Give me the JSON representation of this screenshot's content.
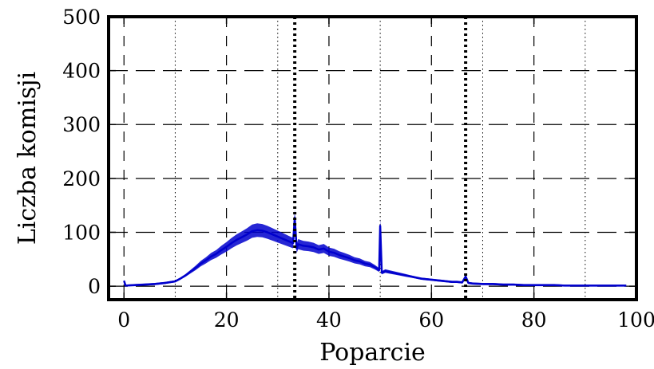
{
  "chart_data": {
    "type": "line",
    "xlabel": "Poparcie",
    "ylabel": "Liczba komisji",
    "xlim": [
      -3,
      100
    ],
    "ylim": [
      -25,
      500
    ],
    "x_ticks": [
      0,
      20,
      40,
      60,
      80,
      100
    ],
    "y_ticks": [
      0,
      100,
      200,
      300,
      400,
      500
    ],
    "x_tick_labels": [
      "0",
      "20",
      "40",
      "60",
      "80",
      "100"
    ],
    "y_tick_labels": [
      "0",
      "100",
      "200",
      "300",
      "400",
      "500"
    ],
    "grid": true,
    "grid_major_x": [
      0,
      20,
      40,
      60,
      80,
      100
    ],
    "grid_minor_x": [
      10,
      30,
      50,
      70,
      90
    ],
    "grid_y": [
      0,
      100,
      200,
      300,
      400,
      500
    ],
    "reference_lines_x": [
      33.33,
      66.67
    ],
    "series": [
      {
        "color": "#0000cc",
        "x": [
          0,
          0.3,
          2,
          4,
          6,
          8,
          10,
          11,
          12,
          13,
          14,
          15,
          16,
          17,
          18,
          19,
          20,
          21,
          22,
          23,
          24,
          25,
          26,
          27,
          28,
          29,
          30,
          31,
          32,
          33,
          33.33,
          33.7,
          34,
          35,
          36,
          37,
          38,
          39,
          40,
          41,
          42,
          43,
          44,
          45,
          46,
          47,
          48,
          49,
          49.8,
          50,
          50.3,
          51,
          52,
          53,
          54,
          55,
          56,
          57,
          58,
          59,
          60,
          61,
          62,
          63,
          64,
          65,
          66,
          66.67,
          67.2,
          68,
          70,
          72,
          74,
          76,
          78,
          80,
          82,
          84,
          86,
          88,
          90,
          92,
          94,
          96,
          98
        ],
        "y": [
          10,
          1,
          2,
          3,
          4,
          6,
          9,
          14,
          20,
          27,
          34,
          42,
          48,
          55,
          60,
          67,
          73,
          80,
          86,
          91,
          96,
          102,
          104,
          103,
          100,
          96,
          92,
          88,
          84,
          80,
          127,
          70,
          78,
          75,
          74,
          72,
          68,
          70,
          64,
          62,
          58,
          55,
          52,
          48,
          46,
          42,
          40,
          35,
          30,
          112,
          25,
          28,
          26,
          24,
          22,
          20,
          18,
          16,
          14,
          13,
          12,
          11,
          10,
          9,
          8,
          8,
          7,
          18,
          6,
          5,
          4,
          4,
          3,
          3,
          2,
          2,
          2,
          2,
          1,
          1,
          1,
          1,
          1,
          1,
          1
        ]
      }
    ]
  }
}
